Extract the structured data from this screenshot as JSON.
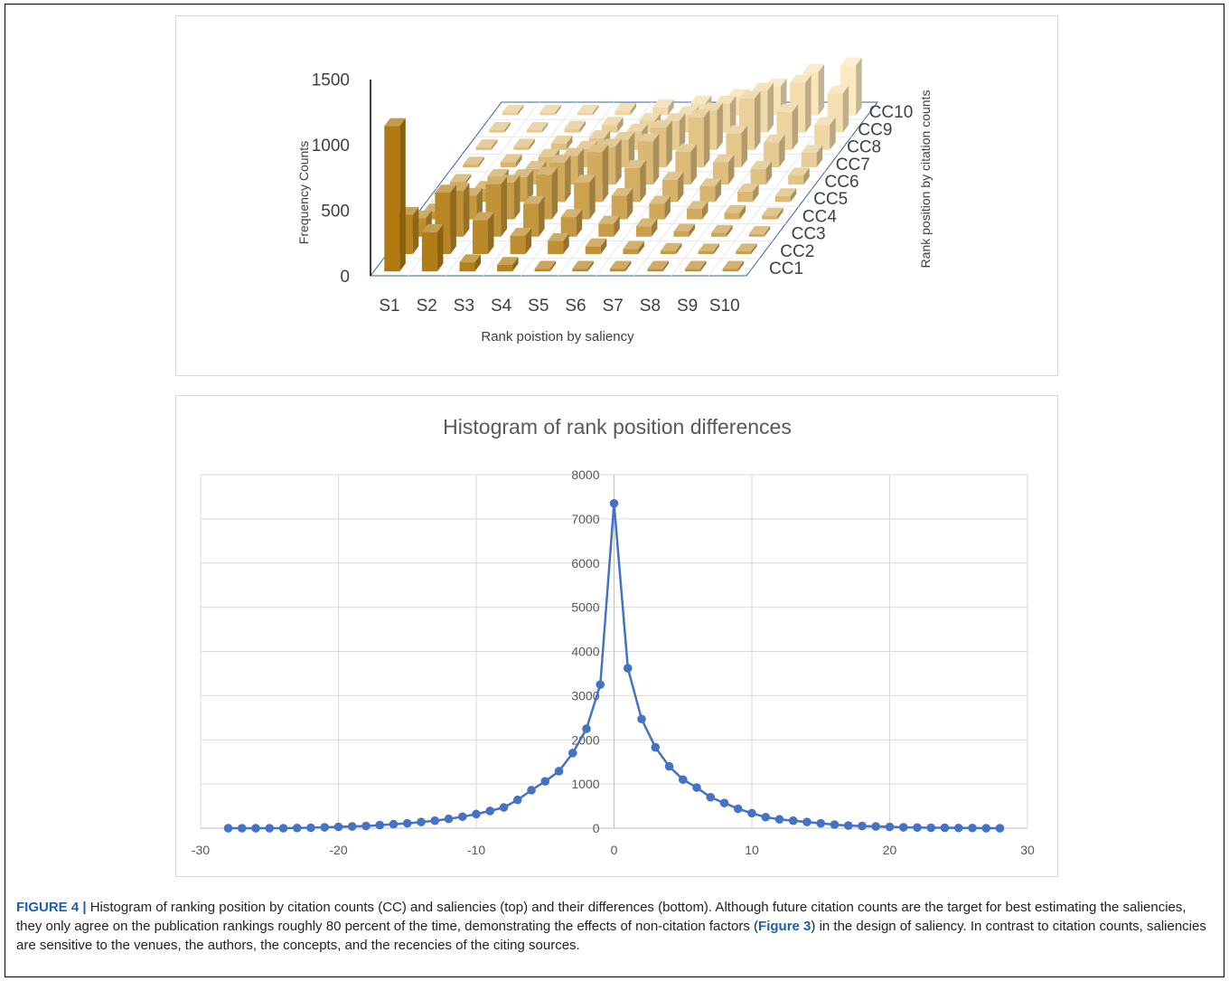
{
  "chart_data": [
    {
      "type": "bar3d",
      "ylabel": "Frequency Counts",
      "xlabel": "Rank poistion by saliency",
      "zlabel": "Rank position by citation counts",
      "y_ticks": [
        "0",
        "500",
        "1000",
        "1500"
      ],
      "ylim": [
        0,
        1500
      ],
      "categories_x": [
        "S1",
        "S2",
        "S3",
        "S4",
        "S5",
        "S6",
        "S7",
        "S8",
        "S9",
        "S10"
      ],
      "categories_depth": [
        "CC1",
        "CC2",
        "CC3",
        "CC4",
        "CC5",
        "CC6",
        "CC7",
        "CC8",
        "CC9",
        "CC10"
      ],
      "values": [
        [
          1110,
          300,
          70,
          50,
          15,
          10,
          8,
          6,
          5,
          4
        ],
        [
          300,
          470,
          260,
          140,
          100,
          60,
          40,
          25,
          15,
          10
        ],
        [
          140,
          350,
          400,
          250,
          150,
          100,
          80,
          40,
          30,
          20
        ],
        [
          60,
          180,
          280,
          340,
          280,
          180,
          120,
          80,
          50,
          30
        ],
        [
          30,
          100,
          190,
          300,
          380,
          260,
          170,
          120,
          80,
          45
        ],
        [
          15,
          60,
          120,
          220,
          290,
          330,
          250,
          170,
          120,
          70
        ],
        [
          10,
          40,
          80,
          140,
          210,
          300,
          380,
          260,
          190,
          110
        ],
        [
          8,
          25,
          50,
          90,
          140,
          220,
          300,
          390,
          290,
          190
        ],
        [
          5,
          15,
          30,
          60,
          90,
          140,
          220,
          320,
          380,
          300
        ],
        [
          4,
          10,
          20,
          35,
          60,
          90,
          140,
          220,
          330,
          380
        ]
      ]
    },
    {
      "type": "line",
      "title": "Histogram of rank position differences",
      "xlim": [
        -30,
        30
      ],
      "ylim": [
        0,
        8000
      ],
      "x_ticks": [
        "-30",
        "-20",
        "-10",
        "0",
        "10",
        "20",
        "30"
      ],
      "y_ticks": [
        "0",
        "1000",
        "2000",
        "3000",
        "4000",
        "5000",
        "6000",
        "7000",
        "8000"
      ],
      "color": "#4472c4",
      "x": [
        -28,
        -27,
        -26,
        -25,
        -24,
        -23,
        -22,
        -21,
        -20,
        -19,
        -18,
        -17,
        -16,
        -15,
        -14,
        -13,
        -12,
        -11,
        -10,
        -9,
        -8,
        -7,
        -6,
        -5,
        -4,
        -3,
        -2,
        -1,
        0,
        1,
        2,
        3,
        4,
        5,
        6,
        7,
        8,
        9,
        10,
        11,
        12,
        13,
        14,
        15,
        16,
        17,
        18,
        19,
        20,
        21,
        22,
        23,
        24,
        25,
        26,
        27,
        28
      ],
      "y": [
        0,
        0,
        0,
        0,
        0,
        5,
        10,
        20,
        30,
        40,
        50,
        70,
        90,
        110,
        140,
        170,
        210,
        260,
        320,
        390,
        470,
        640,
        860,
        1060,
        1290,
        1700,
        2250,
        3250,
        7350,
        3620,
        2470,
        1830,
        1400,
        1100,
        920,
        700,
        570,
        440,
        340,
        250,
        200,
        170,
        140,
        110,
        80,
        60,
        50,
        40,
        30,
        20,
        15,
        10,
        10,
        5,
        5,
        0,
        0
      ]
    }
  ],
  "caption": {
    "lead": "FIGURE 4 |",
    "text1": " Histogram of ranking position by citation counts (CC) and saliencies (top) and their differences (bottom). Although future citation counts are the target for best estimating the saliencies, they only agree on the publication rankings roughly 80 percent of the time, demonstrating the effects of non-citation factors (",
    "ref": "Figure 3",
    "text2": ") in the design of saliency. In contrast to citation counts, saliencies are sensitive to the venues, the authors, the concepts, and the recencies of the citing sources."
  },
  "colors": {
    "line": "#4472c4",
    "grid": "#d9d9d9",
    "bar_dark": "#b07a10",
    "bar_light": "#fbe9c2",
    "floor": "#ffffff",
    "floor_edge": "#3465a4"
  }
}
